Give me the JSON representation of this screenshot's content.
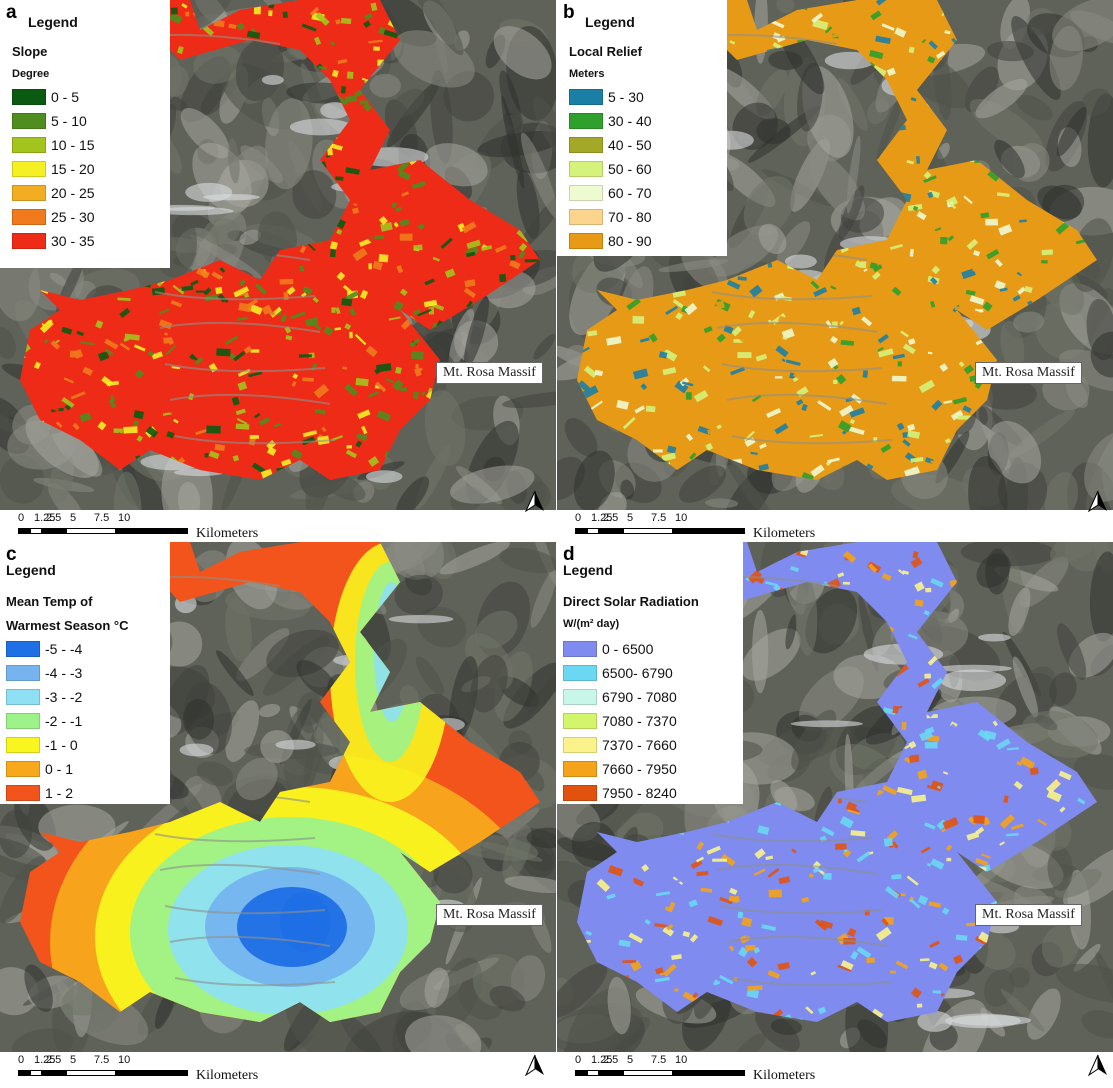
{
  "panels": [
    {
      "label": "a",
      "legend_title": "Legend",
      "variable": "Slope",
      "unit": "Degree",
      "classes": [
        {
          "label": "0 - 5",
          "color": "#0a5a12"
        },
        {
          "label": "5 - 10",
          "color": "#4e8d1e"
        },
        {
          "label": "10 - 15",
          "color": "#a3c41c"
        },
        {
          "label": "15 - 20",
          "color": "#f5f023"
        },
        {
          "label": "20 - 25",
          "color": "#f2ad23"
        },
        {
          "label": "25 - 30",
          "color": "#f07a1c"
        },
        {
          "label": "30 - 35",
          "color": "#ee2b17"
        }
      ],
      "place_label": "Mt. Rosa Massif",
      "scale_ticks": [
        "0",
        "1.25",
        "2.5",
        "5",
        "7.5",
        "10"
      ],
      "scale_units": "Kilometers",
      "map_colors": [
        "#ee2b17",
        "#f5f023",
        "#4e8d1e",
        "#f07a1c",
        "#0a5a12",
        "#a3c41c"
      ]
    },
    {
      "label": "b",
      "legend_title": "Legend",
      "variable": "Local Relief",
      "unit": "Meters",
      "classes": [
        {
          "label": "5 - 30",
          "color": "#1b7fa5"
        },
        {
          "label": "30 - 40",
          "color": "#2ea02b"
        },
        {
          "label": "40 - 50",
          "color": "#a3a826"
        },
        {
          "label": "50 - 60",
          "color": "#d5f27a"
        },
        {
          "label": "60 - 70",
          "color": "#eefad0"
        },
        {
          "label": "70 - 80",
          "color": "#fbd48e"
        },
        {
          "label": "80 - 90",
          "color": "#e79a15"
        }
      ],
      "place_label": "Mt. Rosa Massif",
      "scale_ticks": [
        "0",
        "1.25",
        "2.5",
        "5",
        "7.5",
        "10"
      ],
      "scale_units": "Kilometers",
      "map_colors": [
        "#e79a15",
        "#2ea02b",
        "#1b7fa5",
        "#d5f27a",
        "#e79a15",
        "#eefad0"
      ]
    },
    {
      "label": "c",
      "legend_title": "Legend",
      "variable": "Mean Temp of",
      "unit": "Warmest Season °C",
      "classes": [
        {
          "label": "-5 - -4",
          "color": "#1f6fe6"
        },
        {
          "label": "-4 - -3",
          "color": "#76b4ef"
        },
        {
          "label": "-3 - -2",
          "color": "#8fe0f2"
        },
        {
          "label": "-2 - -1",
          "color": "#9df28a"
        },
        {
          "label": "-1 - 0",
          "color": "#f8f51f"
        },
        {
          "label": "0 - 1",
          "color": "#f7a81b"
        },
        {
          "label": "1 - 2",
          "color": "#f2541b"
        }
      ],
      "place_label": "Mt. Rosa Massif",
      "scale_ticks": [
        "0",
        "1.25",
        "2.5",
        "5",
        "7.5",
        "10"
      ],
      "scale_units": "Kilometers",
      "map_colors": [
        "#f2541b",
        "#f7a81b",
        "#f8f51f",
        "#9df28a",
        "#8fe0f2",
        "#76b4ef",
        "#1f6fe6"
      ]
    },
    {
      "label": "d",
      "legend_title": "Legend",
      "variable": "Direct Solar Radiation",
      "unit": "W/(m² day)",
      "classes": [
        {
          "label": "0 - 6500",
          "color": "#7f8bee"
        },
        {
          "label": "6500- 6790",
          "color": "#6ad7f3"
        },
        {
          "label": "6790 - 7080",
          "color": "#c8f6e8"
        },
        {
          "label": "7080 - 7370",
          "color": "#d2f56b"
        },
        {
          "label": "7370 - 7660",
          "color": "#faf28a"
        },
        {
          "label": "7660 - 7950",
          "color": "#f4a31a"
        },
        {
          "label": "7950 - 8240",
          "color": "#e2520f"
        }
      ],
      "place_label": "Mt. Rosa Massif",
      "scale_ticks": [
        "0",
        "1.25",
        "2.5",
        "5",
        "7.5",
        "10"
      ],
      "scale_units": "Kilometers",
      "map_colors": [
        "#7f8bee",
        "#6ad7f3",
        "#faf28a",
        "#e2520f",
        "#7f8bee",
        "#f4a31a"
      ]
    }
  ]
}
